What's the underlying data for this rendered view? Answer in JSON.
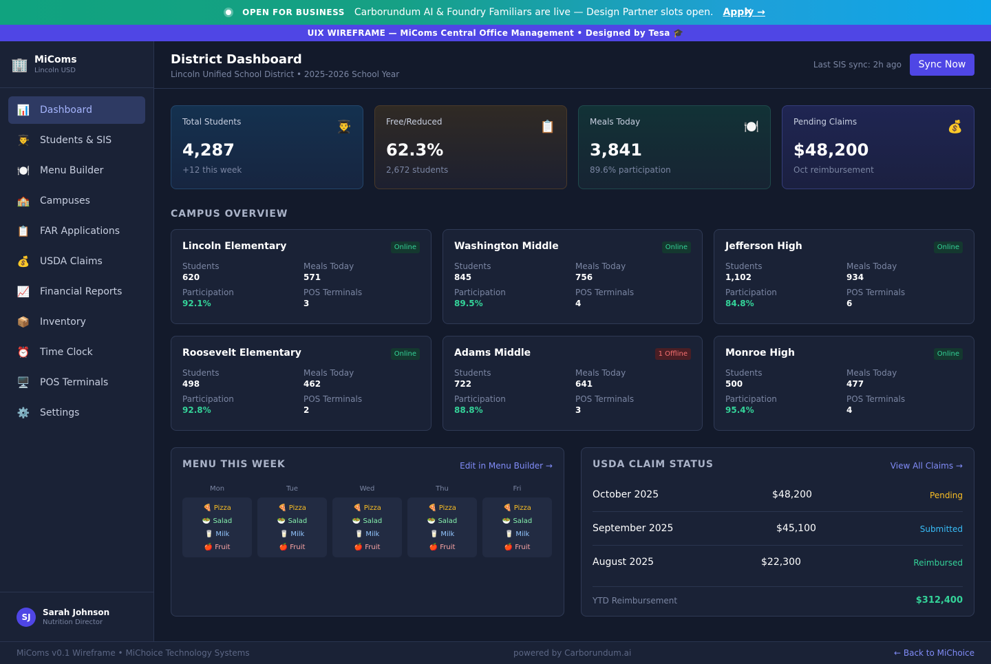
{
  "banner": {
    "tag": "OPEN FOR BUSINESS",
    "message": "Carborundum AI & Foundry Familiars are live — Design Partner slots open.",
    "link": "Apply →",
    "close": "×"
  },
  "wireframe_bar": "UIX WIREFRAME — MiComs Central Office Management • Designed by Tesa 🎓",
  "sidebar": {
    "brand_icon": "🏢",
    "brand_name": "MiComs",
    "brand_sub": "Lincoln USD",
    "items": [
      {
        "icon": "📊",
        "label": "Dashboard"
      },
      {
        "icon": "👨‍🎓",
        "label": "Students & SIS"
      },
      {
        "icon": "🍽️",
        "label": "Menu Builder"
      },
      {
        "icon": "🏫",
        "label": "Campuses"
      },
      {
        "icon": "📋",
        "label": "FAR Applications"
      },
      {
        "icon": "💰",
        "label": "USDA Claims"
      },
      {
        "icon": "📈",
        "label": "Financial Reports"
      },
      {
        "icon": "📦",
        "label": "Inventory"
      },
      {
        "icon": "⏰",
        "label": "Time Clock"
      },
      {
        "icon": "🖥️",
        "label": "POS Terminals"
      },
      {
        "icon": "⚙️",
        "label": "Settings"
      }
    ],
    "user": {
      "initials": "SJ",
      "name": "Sarah Johnson",
      "role": "Nutrition Director"
    }
  },
  "header": {
    "title": "District Dashboard",
    "subtitle": "Lincoln Unified School District • 2025-2026 School Year",
    "sync_text": "Last SIS sync: 2h ago",
    "sync_button": "Sync Now"
  },
  "stats": [
    {
      "label": "Total Students",
      "icon": "👨‍🎓",
      "value": "4,287",
      "sub": "+12 this week"
    },
    {
      "label": "Free/Reduced",
      "icon": "📋",
      "value": "62.3%",
      "sub": "2,672 students"
    },
    {
      "label": "Meals Today",
      "icon": "🍽️",
      "value": "3,841",
      "sub": "89.6% participation"
    },
    {
      "label": "Pending Claims",
      "icon": "💰",
      "value": "$48,200",
      "sub": "Oct reimbursement"
    }
  ],
  "campus_overview": {
    "title": "CAMPUS OVERVIEW",
    "labels": {
      "students": "Students",
      "meals": "Meals Today",
      "participation": "Participation",
      "pos": "POS Terminals"
    },
    "campuses": [
      {
        "name": "Lincoln Elementary",
        "status": "Online",
        "students": "620",
        "meals": "571",
        "participation": "92.1%",
        "pos": "3"
      },
      {
        "name": "Washington Middle",
        "status": "Online",
        "students": "845",
        "meals": "756",
        "participation": "89.5%",
        "pos": "4"
      },
      {
        "name": "Jefferson High",
        "status": "Online",
        "students": "1,102",
        "meals": "934",
        "participation": "84.8%",
        "pos": "6"
      },
      {
        "name": "Roosevelt Elementary",
        "status": "Online",
        "students": "498",
        "meals": "462",
        "participation": "92.8%",
        "pos": "2"
      },
      {
        "name": "Adams Middle",
        "status": "1 Offline",
        "students": "722",
        "meals": "641",
        "participation": "88.8%",
        "pos": "3"
      },
      {
        "name": "Monroe High",
        "status": "Online",
        "students": "500",
        "meals": "477",
        "participation": "95.4%",
        "pos": "4"
      }
    ]
  },
  "menu": {
    "title": "MENU THIS WEEK",
    "link": "Edit in Menu Builder →",
    "days": [
      {
        "day": "Mon",
        "items": [
          "🍕 Pizza",
          "🥗 Salad",
          "🥛 Milk",
          "🍎 Fruit"
        ]
      },
      {
        "day": "Tue",
        "items": [
          "🍕 Pizza",
          "🥗 Salad",
          "🥛 Milk",
          "🍎 Fruit"
        ]
      },
      {
        "day": "Wed",
        "items": [
          "🍕 Pizza",
          "🥗 Salad",
          "🥛 Milk",
          "🍎 Fruit"
        ]
      },
      {
        "day": "Thu",
        "items": [
          "🍕 Pizza",
          "🥗 Salad",
          "🥛 Milk",
          "🍎 Fruit"
        ]
      },
      {
        "day": "Fri",
        "items": [
          "🍕 Pizza",
          "🥗 Salad",
          "🥛 Milk",
          "🍎 Fruit"
        ]
      }
    ]
  },
  "claims": {
    "title": "USDA CLAIM STATUS",
    "link": "View All Claims →",
    "rows": [
      {
        "month": "October 2025",
        "amount": "$48,200",
        "status": "Pending"
      },
      {
        "month": "September 2025",
        "amount": "$45,100",
        "status": "Submitted"
      },
      {
        "month": "August 2025",
        "amount": "$22,300",
        "status": "Reimbursed"
      }
    ],
    "ytd_label": "YTD Reimbursement",
    "ytd_value": "$312,400"
  },
  "footer": {
    "left": "MiComs v0.1 Wireframe • MiChoice Technology Systems",
    "mid": "powered by Carborundum.ai",
    "right": "← Back to MiChoice"
  },
  "colors": {
    "accent": "#4f46e5",
    "success": "#34d399",
    "warning": "#fbbf24",
    "info": "#38bdf8",
    "danger": "#f87171"
  }
}
